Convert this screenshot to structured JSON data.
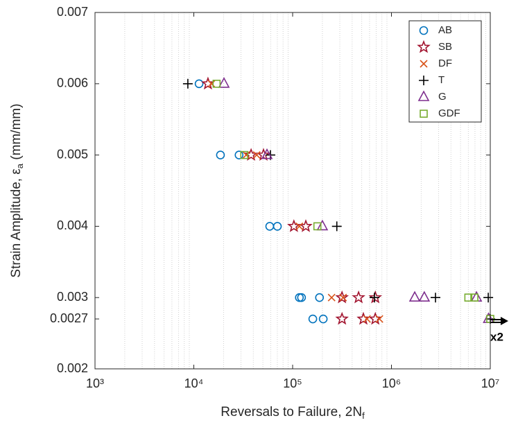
{
  "chart_data": {
    "type": "scatter",
    "xlabel": {
      "text": "Reversals to Failure, 2N",
      "subscript": "f"
    },
    "ylabel": {
      "text": "Strain Amplitude, ε",
      "subscript": "a",
      "after": " (mm/mm)"
    },
    "xlog": true,
    "xlim": [
      1000,
      10000000
    ],
    "xticks": [
      {
        "value": 1000,
        "label": "10³"
      },
      {
        "value": 10000,
        "label": "10⁴"
      },
      {
        "value": 100000,
        "label": "10⁵"
      },
      {
        "value": 1000000,
        "label": "10⁶"
      },
      {
        "value": 10000000,
        "label": "10⁷"
      }
    ],
    "ylim": [
      0.002,
      0.007
    ],
    "yticks": [
      0.002,
      0.0027,
      0.003,
      0.004,
      0.005,
      0.006,
      0.007
    ],
    "grid": "x-minor",
    "legend": "upper right",
    "annotation": "x2",
    "series": [
      {
        "name": "AB",
        "color": "#0072BD",
        "marker": "circle",
        "x": [
          11300,
          18600,
          28700,
          58600,
          70100,
          117000,
          123000,
          187000,
          160000,
          204000
        ],
        "values": [
          0.006,
          0.005,
          0.005,
          0.004,
          0.004,
          0.003,
          0.003,
          0.003,
          0.0027,
          0.0027
        ]
      },
      {
        "name": "SB",
        "color": "#A2142F",
        "marker": "star",
        "x": [
          13900,
          38000,
          50700,
          103000,
          136000,
          316000,
          465000,
          686000,
          316000,
          520000,
          686000
        ],
        "values": [
          0.006,
          0.005,
          0.005,
          0.004,
          0.004,
          0.003,
          0.003,
          0.003,
          0.0027,
          0.0027,
          0.0027
        ]
      },
      {
        "name": "DF",
        "color": "#D95319",
        "marker": "x",
        "x": [
          15100,
          33900,
          43300,
          117000,
          248000,
          324000,
          566000,
          756000
        ],
        "values": [
          0.006,
          0.005,
          0.005,
          0.004,
          0.003,
          0.003,
          0.0027,
          0.0027
        ]
      },
      {
        "name": "T",
        "color": "#000000",
        "marker": "plus",
        "x": [
          8700,
          59600,
          280000,
          673000,
          2790000,
          9540000,
          10000000
        ],
        "values": [
          0.006,
          0.005,
          0.004,
          0.003,
          0.003,
          0.003,
          0.0027
        ]
      },
      {
        "name": "G",
        "color": "#7E2F8E",
        "marker": "triangle",
        "x": [
          20200,
          55000,
          200000,
          1720000,
          2150000,
          7250000,
          9600000
        ],
        "values": [
          0.006,
          0.005,
          0.004,
          0.003,
          0.003,
          0.003,
          0.0027
        ]
      },
      {
        "name": "GDF",
        "color": "#77AC30",
        "marker": "square",
        "x": [
          17000,
          32400,
          178000,
          6000000,
          6900000,
          10000000
        ],
        "values": [
          0.006,
          0.005,
          0.004,
          0.003,
          0.003,
          0.0027
        ]
      }
    ]
  }
}
